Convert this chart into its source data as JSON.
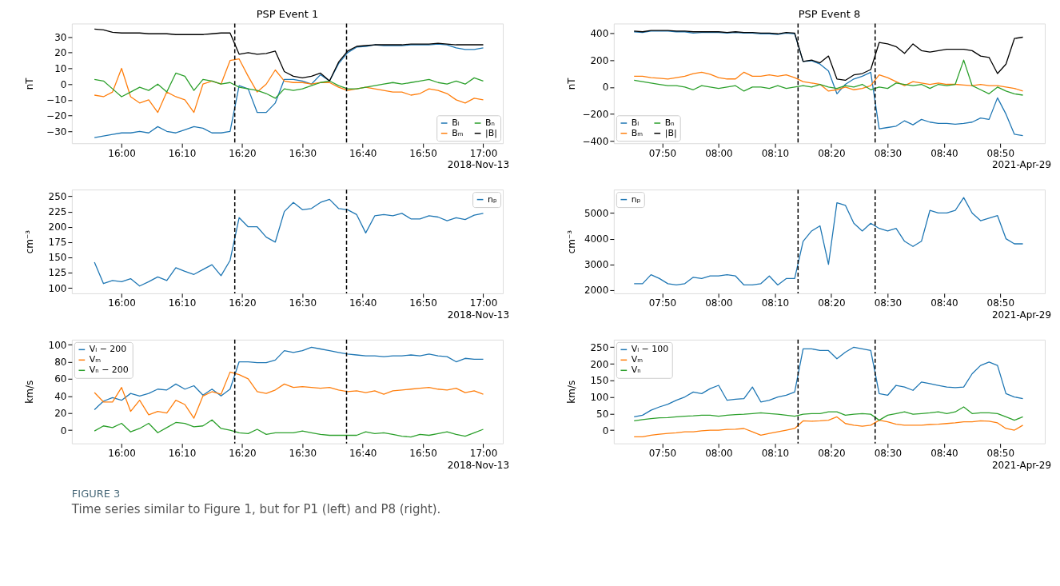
{
  "chart_data": [
    {
      "type": "line",
      "title": "PSP Event 1",
      "ylabel": "nT",
      "xlim": [
        15.8625,
        17.0542
      ],
      "ylim": [
        -37.6,
        38.5
      ],
      "yticks": [
        -30,
        -20,
        -10,
        0,
        10,
        20,
        30
      ],
      "xticks": [
        {
          "value": 16,
          "label": "16:00"
        },
        {
          "value": 16.1667,
          "label": "16:10"
        },
        {
          "value": 16.3333,
          "label": "16:20"
        },
        {
          "value": 16.5,
          "label": "16:30"
        },
        {
          "value": 16.6667,
          "label": "16:40"
        },
        {
          "value": 16.8333,
          "label": "16:50"
        },
        {
          "value": 17,
          "label": "17:00"
        }
      ],
      "x": [
        15.925,
        15.95,
        15.975,
        16,
        16.025,
        16.05,
        16.075,
        16.1,
        16.125,
        16.15,
        16.175,
        16.2,
        16.225,
        16.25,
        16.275,
        16.3,
        16.325,
        16.35,
        16.375,
        16.4,
        16.425,
        16.45,
        16.475,
        16.5,
        16.525,
        16.55,
        16.575,
        16.6,
        16.625,
        16.65,
        16.675,
        16.7,
        16.725,
        16.75,
        16.775,
        16.8,
        16.825,
        16.85,
        16.875,
        16.9,
        16.925,
        16.95,
        16.975,
        17
      ],
      "series": [
        {
          "name": "Bₗ",
          "color": "#1f77b4",
          "values": [
            -34,
            -33,
            -32,
            -31,
            -31,
            -30,
            -31,
            -27,
            -30,
            -31,
            -29,
            -27,
            -28,
            -31,
            -31,
            -30,
            -1,
            -3,
            -18,
            -18,
            -12,
            3,
            3,
            2,
            0,
            6,
            2,
            13,
            20,
            23.5,
            24,
            25,
            24.5,
            24.5,
            24.5,
            25,
            25,
            25,
            25.5,
            25,
            23,
            22,
            22,
            23
          ]
        },
        {
          "name": "Bₘ",
          "color": "#ff7f0e",
          "values": [
            -7,
            -8,
            -5,
            10,
            -8,
            -12,
            -10,
            -18,
            -5,
            -8,
            -10,
            -18,
            0,
            2,
            0,
            15,
            16,
            5,
            -5,
            0,
            9,
            2,
            1,
            1,
            0,
            1,
            1,
            -2,
            -4,
            -3,
            -2,
            -3,
            -4,
            -5,
            -5,
            -7,
            -6,
            -3,
            -4,
            -6,
            -10,
            -12,
            -9,
            -10
          ]
        },
        {
          "name": "Bₙ",
          "color": "#2ca02c",
          "values": [
            3,
            2,
            -3,
            -8,
            -5,
            -2,
            -4,
            0,
            -5,
            7,
            5,
            -4,
            3,
            2,
            0,
            1,
            -2,
            -3,
            -4,
            -6,
            -9,
            -3,
            -4,
            -3,
            -1,
            1,
            2,
            -1,
            -3,
            -3,
            -2,
            -1,
            0,
            1,
            0,
            1,
            2,
            3,
            1,
            0,
            2,
            0,
            4,
            2
          ]
        },
        {
          "name": "|B|",
          "color": "#000000",
          "values": [
            35,
            34.5,
            33,
            32.5,
            32.5,
            32.5,
            32,
            32,
            32,
            31.5,
            31.5,
            31.5,
            31.5,
            32,
            32.5,
            32.5,
            19,
            20,
            19,
            19.5,
            21,
            8,
            5,
            4,
            5,
            7,
            2,
            14,
            21,
            24,
            24.5,
            25,
            25,
            25,
            25,
            25.5,
            25.5,
            25.5,
            26,
            25.5,
            25,
            25,
            25,
            25
          ]
        }
      ],
      "ref_lines": [
        {
          "axis": "x",
          "value": 16.313,
          "color": "#000000",
          "line_style": "dashed"
        },
        {
          "axis": "x",
          "value": 16.622,
          "color": "#000000",
          "line_style": "dashed"
        }
      ],
      "legend": "bottom right",
      "grid": false,
      "annotations": [
        "2018-Nov-13"
      ]
    },
    {
      "type": "line",
      "title": "PSP Event 8",
      "ylabel": "nT",
      "xlim": [
        7.69,
        8.965
      ],
      "ylim": [
        -417,
        471
      ],
      "yticks": [
        -400,
        -200,
        0,
        200,
        400
      ],
      "xticks": [
        {
          "value": 7.8333,
          "label": "07:50"
        },
        {
          "value": 8,
          "label": "08:00"
        },
        {
          "value": 8.1667,
          "label": "08:10"
        },
        {
          "value": 8.3333,
          "label": "08:20"
        },
        {
          "value": 8.5,
          "label": "08:30"
        },
        {
          "value": 8.6667,
          "label": "08:40"
        },
        {
          "value": 8.8333,
          "label": "08:50"
        }
      ],
      "x": [
        7.75,
        7.775,
        7.8,
        7.825,
        7.85,
        7.875,
        7.9,
        7.925,
        7.95,
        7.975,
        8,
        8.025,
        8.05,
        8.075,
        8.1,
        8.125,
        8.15,
        8.175,
        8.2,
        8.225,
        8.25,
        8.275,
        8.3,
        8.325,
        8.35,
        8.375,
        8.4,
        8.425,
        8.45,
        8.475,
        8.5,
        8.525,
        8.55,
        8.575,
        8.6,
        8.625,
        8.65,
        8.675,
        8.7,
        8.725,
        8.75,
        8.775,
        8.8,
        8.825,
        8.85,
        8.875,
        8.9
      ],
      "series": [
        {
          "name": "Bₗ",
          "color": "#1f77b4",
          "values": [
            410,
            405,
            415,
            415,
            415,
            410,
            410,
            400,
            405,
            405,
            405,
            400,
            405,
            400,
            400,
            395,
            395,
            390,
            400,
            395,
            190,
            195,
            170,
            120,
            -50,
            20,
            60,
            80,
            110,
            -310,
            -300,
            -290,
            -250,
            -280,
            -240,
            -260,
            -270,
            -270,
            -275,
            -270,
            -260,
            -230,
            -240,
            -80,
            -200,
            -350,
            -360
          ]
        },
        {
          "name": "Bₘ",
          "color": "#ff7f0e",
          "values": [
            80,
            80,
            70,
            65,
            60,
            70,
            80,
            100,
            110,
            95,
            70,
            60,
            60,
            110,
            80,
            80,
            90,
            80,
            90,
            70,
            40,
            30,
            20,
            -30,
            -20,
            0,
            -20,
            -10,
            10,
            90,
            70,
            40,
            10,
            40,
            30,
            20,
            30,
            20,
            20,
            15,
            10,
            20,
            10,
            10,
            0,
            -10,
            -30
          ]
        },
        {
          "name": "Bₙ",
          "color": "#2ca02c",
          "values": [
            50,
            40,
            30,
            20,
            10,
            10,
            0,
            -20,
            10,
            0,
            -10,
            0,
            10,
            -30,
            0,
            0,
            -10,
            10,
            -10,
            0,
            10,
            0,
            20,
            0,
            -10,
            10,
            0,
            20,
            -20,
            0,
            -10,
            30,
            20,
            10,
            20,
            -10,
            20,
            10,
            20,
            200,
            10,
            -20,
            -50,
            0,
            -30,
            -50,
            -60
          ]
        },
        {
          "name": "|B|",
          "color": "#000000",
          "values": [
            415,
            410,
            420,
            420,
            420,
            415,
            415,
            410,
            410,
            410,
            410,
            405,
            410,
            405,
            405,
            400,
            400,
            395,
            405,
            400,
            190,
            200,
            180,
            230,
            60,
            50,
            90,
            100,
            130,
            330,
            320,
            300,
            250,
            320,
            270,
            260,
            270,
            280,
            280,
            280,
            270,
            230,
            220,
            100,
            170,
            360,
            370
          ]
        }
      ],
      "ref_lines": [
        {
          "axis": "x",
          "value": 8.235,
          "color": "#000000",
          "line_style": "dashed"
        },
        {
          "axis": "x",
          "value": 8.463,
          "color": "#000000",
          "line_style": "dashed"
        }
      ],
      "legend": "bottom left",
      "grid": false,
      "annotations": [
        "2021-Apr-29"
      ]
    },
    {
      "type": "line",
      "ylabel": "cm⁻³",
      "xlim": [
        15.8625,
        17.0542
      ],
      "ylim": [
        91,
        261
      ],
      "yticks": [
        100,
        125,
        150,
        175,
        200,
        225,
        250
      ],
      "xticks": [
        {
          "value": 16,
          "label": "16:00"
        },
        {
          "value": 16.1667,
          "label": "16:10"
        },
        {
          "value": 16.3333,
          "label": "16:20"
        },
        {
          "value": 16.5,
          "label": "16:30"
        },
        {
          "value": 16.6667,
          "label": "16:40"
        },
        {
          "value": 16.8333,
          "label": "16:50"
        },
        {
          "value": 17,
          "label": "17:00"
        }
      ],
      "x": [
        15.925,
        15.95,
        15.975,
        16,
        16.025,
        16.05,
        16.075,
        16.1,
        16.125,
        16.15,
        16.175,
        16.2,
        16.225,
        16.25,
        16.275,
        16.3,
        16.325,
        16.35,
        16.375,
        16.4,
        16.425,
        16.45,
        16.475,
        16.5,
        16.525,
        16.55,
        16.575,
        16.6,
        16.625,
        16.65,
        16.675,
        16.7,
        16.725,
        16.75,
        16.775,
        16.8,
        16.825,
        16.85,
        16.875,
        16.9,
        16.925,
        16.95,
        16.975,
        17
      ],
      "series": [
        {
          "name": "nₚ",
          "color": "#1f77b4",
          "values": [
            142,
            107,
            112,
            110,
            115,
            103,
            110,
            118,
            112,
            133,
            127,
            122,
            130,
            138,
            120,
            145,
            215,
            200,
            200,
            183,
            175,
            225,
            240,
            228,
            230,
            240,
            245,
            230,
            228,
            220,
            190,
            218,
            220,
            218,
            222,
            213,
            213,
            218,
            216,
            210,
            215,
            212,
            219,
            222
          ]
        }
      ],
      "ref_lines": [
        {
          "axis": "x",
          "value": 16.313,
          "color": "#000000",
          "line_style": "dashed"
        },
        {
          "axis": "x",
          "value": 16.622,
          "color": "#000000",
          "line_style": "dashed"
        }
      ],
      "legend": "top right",
      "grid": false,
      "annotations": [
        "2018-Nov-13"
      ]
    },
    {
      "type": "line",
      "ylabel": "cm⁻³",
      "xlim": [
        7.69,
        8.965
      ],
      "ylim": [
        1873,
        5912
      ],
      "yticks": [
        2000,
        3000,
        4000,
        5000
      ],
      "xticks": [
        {
          "value": 7.8333,
          "label": "07:50"
        },
        {
          "value": 8,
          "label": "08:00"
        },
        {
          "value": 8.1667,
          "label": "08:10"
        },
        {
          "value": 8.3333,
          "label": "08:20"
        },
        {
          "value": 8.5,
          "label": "08:30"
        },
        {
          "value": 8.6667,
          "label": "08:40"
        },
        {
          "value": 8.8333,
          "label": "08:50"
        }
      ],
      "x": [
        7.75,
        7.775,
        7.8,
        7.825,
        7.85,
        7.875,
        7.9,
        7.925,
        7.95,
        7.975,
        8,
        8.025,
        8.05,
        8.075,
        8.1,
        8.125,
        8.15,
        8.175,
        8.2,
        8.225,
        8.25,
        8.275,
        8.3,
        8.325,
        8.35,
        8.375,
        8.4,
        8.425,
        8.45,
        8.475,
        8.5,
        8.525,
        8.55,
        8.575,
        8.6,
        8.625,
        8.65,
        8.675,
        8.7,
        8.725,
        8.75,
        8.775,
        8.8,
        8.825,
        8.85,
        8.875,
        8.9
      ],
      "series": [
        {
          "name": "nₚ",
          "color": "#1f77b4",
          "values": [
            2250,
            2250,
            2600,
            2450,
            2250,
            2200,
            2250,
            2500,
            2450,
            2550,
            2550,
            2600,
            2550,
            2200,
            2200,
            2250,
            2550,
            2200,
            2450,
            2450,
            3900,
            4300,
            4500,
            3000,
            5400,
            5300,
            4600,
            4300,
            4600,
            4400,
            4300,
            4400,
            3900,
            3700,
            3900,
            5100,
            5000,
            5000,
            5100,
            5600,
            5000,
            4700,
            4800,
            4900,
            4000,
            3800,
            3800
          ]
        }
      ],
      "ref_lines": [
        {
          "axis": "x",
          "value": 8.235,
          "color": "#000000",
          "line_style": "dashed"
        },
        {
          "axis": "x",
          "value": 8.463,
          "color": "#000000",
          "line_style": "dashed"
        }
      ],
      "legend": "top left",
      "grid": false,
      "annotations": [
        "2021-Apr-29"
      ]
    },
    {
      "type": "line",
      "ylabel": "km/s",
      "xlim": [
        15.8625,
        17.0542
      ],
      "ylim": [
        -15.5,
        105.9
      ],
      "yticks": [
        0,
        20,
        40,
        60,
        80,
        100
      ],
      "xticks": [
        {
          "value": 16,
          "label": "16:00"
        },
        {
          "value": 16.1667,
          "label": "16:10"
        },
        {
          "value": 16.3333,
          "label": "16:20"
        },
        {
          "value": 16.5,
          "label": "16:30"
        },
        {
          "value": 16.6667,
          "label": "16:40"
        },
        {
          "value": 16.8333,
          "label": "16:50"
        },
        {
          "value": 17,
          "label": "17:00"
        }
      ],
      "x": [
        15.925,
        15.95,
        15.975,
        16,
        16.025,
        16.05,
        16.075,
        16.1,
        16.125,
        16.15,
        16.175,
        16.2,
        16.225,
        16.25,
        16.275,
        16.3,
        16.325,
        16.35,
        16.375,
        16.4,
        16.425,
        16.45,
        16.475,
        16.5,
        16.525,
        16.55,
        16.575,
        16.6,
        16.625,
        16.65,
        16.675,
        16.7,
        16.725,
        16.75,
        16.775,
        16.8,
        16.825,
        16.85,
        16.875,
        16.9,
        16.925,
        16.95,
        16.975,
        17
      ],
      "series": [
        {
          "name": "Vₗ − 200",
          "color": "#1f77b4",
          "values": [
            24,
            34,
            38,
            35,
            43,
            40,
            43,
            48,
            47,
            54,
            48,
            52,
            41,
            48,
            40,
            48,
            80,
            80,
            79,
            79,
            82,
            93,
            91,
            93,
            97,
            95,
            93,
            91,
            89,
            88,
            87,
            87,
            86,
            87,
            87,
            88,
            87,
            89,
            87,
            86,
            80,
            84,
            83,
            83
          ]
        },
        {
          "name": "Vₘ",
          "color": "#ff7f0e",
          "values": [
            44,
            33,
            33,
            50,
            22,
            35,
            18,
            22,
            20,
            35,
            30,
            14,
            40,
            45,
            42,
            68,
            65,
            60,
            45,
            43,
            47,
            54,
            50,
            51,
            50,
            49,
            50,
            47,
            45,
            46,
            44,
            46,
            42,
            46,
            47,
            48,
            49,
            50,
            48,
            47,
            49,
            44,
            46,
            42
          ]
        },
        {
          "name": "Vₙ − 200",
          "color": "#2ca02c",
          "values": [
            -1,
            5,
            3,
            8,
            -2,
            2,
            8,
            -3,
            3,
            9,
            8,
            4,
            5,
            12,
            2,
            0,
            -3,
            -4,
            1,
            -5,
            -3,
            -3,
            -3,
            -1,
            -3,
            -5,
            -6,
            -6,
            -6,
            -6,
            -2,
            -4,
            -3,
            -5,
            -7,
            -8,
            -5,
            -6,
            -4,
            -2,
            -5,
            -7,
            -3,
            1
          ]
        }
      ],
      "ref_lines": [
        {
          "axis": "x",
          "value": 16.313,
          "color": "#000000",
          "line_style": "dashed"
        },
        {
          "axis": "x",
          "value": 16.622,
          "color": "#000000",
          "line_style": "dashed"
        }
      ],
      "legend": "top left",
      "grid": false,
      "annotations": [
        "2018-Nov-13"
      ]
    },
    {
      "type": "line",
      "ylabel": "km/s",
      "xlim": [
        7.69,
        8.965
      ],
      "ylim": [
        -40,
        272.7
      ],
      "yticks": [
        0,
        50,
        100,
        150,
        200,
        250
      ],
      "xticks": [
        {
          "value": 7.8333,
          "label": "07:50"
        },
        {
          "value": 8,
          "label": "08:00"
        },
        {
          "value": 8.1667,
          "label": "08:10"
        },
        {
          "value": 8.3333,
          "label": "08:20"
        },
        {
          "value": 8.5,
          "label": "08:30"
        },
        {
          "value": 8.6667,
          "label": "08:40"
        },
        {
          "value": 8.8333,
          "label": "08:50"
        }
      ],
      "x": [
        7.75,
        7.775,
        7.8,
        7.825,
        7.85,
        7.875,
        7.9,
        7.925,
        7.95,
        7.975,
        8,
        8.025,
        8.05,
        8.075,
        8.1,
        8.125,
        8.15,
        8.175,
        8.2,
        8.225,
        8.25,
        8.275,
        8.3,
        8.325,
        8.35,
        8.375,
        8.4,
        8.425,
        8.45,
        8.475,
        8.5,
        8.525,
        8.55,
        8.575,
        8.6,
        8.625,
        8.65,
        8.675,
        8.7,
        8.725,
        8.75,
        8.775,
        8.8,
        8.825,
        8.85,
        8.875,
        8.9
      ],
      "series": [
        {
          "name": "Vₗ − 100",
          "color": "#1f77b4",
          "values": [
            40,
            45,
            60,
            70,
            78,
            90,
            100,
            115,
            110,
            125,
            135,
            90,
            93,
            95,
            130,
            85,
            90,
            100,
            105,
            115,
            245,
            245,
            240,
            240,
            215,
            235,
            250,
            245,
            240,
            110,
            105,
            135,
            130,
            120,
            145,
            140,
            135,
            130,
            128,
            130,
            170,
            195,
            205,
            195,
            110,
            100,
            95
          ]
        },
        {
          "name": "Vₘ",
          "color": "#ff7f0e",
          "values": [
            -20,
            -20,
            -15,
            -12,
            -10,
            -8,
            -5,
            -5,
            -2,
            0,
            0,
            2,
            3,
            5,
            -5,
            -15,
            -10,
            -5,
            0,
            5,
            28,
            27,
            28,
            30,
            40,
            20,
            15,
            12,
            15,
            30,
            25,
            18,
            15,
            15,
            15,
            17,
            18,
            20,
            22,
            25,
            25,
            28,
            27,
            22,
            5,
            0,
            15
          ]
        },
        {
          "name": "Vₙ",
          "color": "#2ca02c",
          "values": [
            28,
            32,
            35,
            37,
            38,
            40,
            42,
            43,
            45,
            45,
            42,
            45,
            47,
            48,
            50,
            52,
            50,
            48,
            45,
            42,
            48,
            50,
            50,
            55,
            55,
            45,
            48,
            50,
            48,
            30,
            45,
            50,
            55,
            48,
            50,
            52,
            55,
            50,
            55,
            70,
            50,
            52,
            52,
            50,
            40,
            30,
            40
          ]
        }
      ],
      "ref_lines": [
        {
          "axis": "x",
          "value": 8.235,
          "color": "#000000",
          "line_style": "dashed"
        },
        {
          "axis": "x",
          "value": 8.463,
          "color": "#000000",
          "line_style": "dashed"
        }
      ],
      "legend": "top left",
      "grid": false,
      "annotations": [
        "2021-Apr-29"
      ]
    },
    {
      "type": "other",
      "title": "FIGURE 3",
      "annotations": [
        "Time series similar to Figure 1, but for P1 (left) and P8 (right)."
      ]
    }
  ]
}
